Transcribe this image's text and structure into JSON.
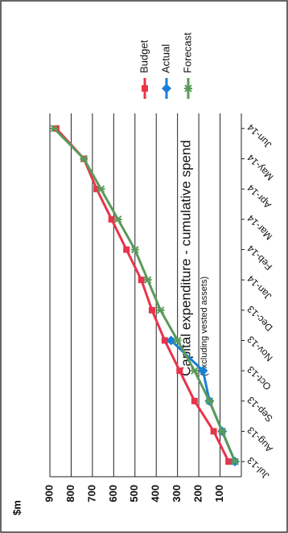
{
  "chart_data": {
    "type": "line",
    "title": "Capital expenditure - cumulative spend",
    "subtitle": "(excluding vested assets)",
    "y_axis_label": "$m",
    "categories": [
      "Jul-13",
      "Aug-13",
      "Sep-13",
      "Oct-13",
      "Nov-13",
      "Dec-13",
      "Jan-14",
      "Feb-14",
      "Mar-14",
      "Apr-14",
      "May-14",
      "Jun-14"
    ],
    "series": [
      {
        "name": "Budget",
        "color": "#e8344a",
        "marker": "square",
        "values": [
          60,
          130,
          220,
          290,
          360,
          420,
          470,
          540,
          610,
          680,
          740,
          870
        ]
      },
      {
        "name": "Actual",
        "color": "#1a7fd4",
        "marker": "diamond",
        "values": [
          30,
          90,
          150,
          180,
          330,
          null,
          null,
          null,
          null,
          null,
          null,
          null
        ]
      },
      {
        "name": "Forecast",
        "color": "#5a9a5a",
        "marker": "star",
        "values": [
          30,
          90,
          150,
          220,
          300,
          380,
          440,
          500,
          580,
          660,
          740,
          880
        ]
      }
    ],
    "ylim": [
      0,
      900
    ],
    "yticks": [
      100,
      200,
      300,
      400,
      500,
      600,
      700,
      800,
      900
    ],
    "grid": true,
    "legend": "top-right"
  }
}
